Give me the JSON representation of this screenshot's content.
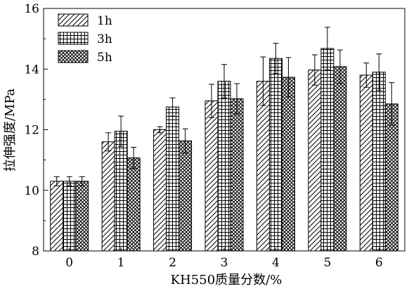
{
  "chart_data": {
    "type": "bar",
    "xlabel": "KH550质量分数/%",
    "ylabel": "拉伸强度/MPa",
    "categories": [
      "0",
      "1",
      "2",
      "3",
      "4",
      "5",
      "6"
    ],
    "ylim": [
      8,
      16
    ],
    "yticks": [
      8,
      10,
      12,
      14,
      16
    ],
    "legend_position": "top-left",
    "series": [
      {
        "name": "1h",
        "pattern": "diagonal-hatch",
        "values": [
          10.3,
          11.6,
          12.0,
          12.95,
          13.6,
          13.97,
          13.8
        ],
        "errors": [
          0.15,
          0.3,
          0.1,
          0.55,
          0.8,
          0.5,
          0.4
        ]
      },
      {
        "name": "3h",
        "pattern": "grid-hatch",
        "values": [
          10.3,
          11.95,
          12.75,
          13.6,
          14.35,
          14.68,
          13.9
        ],
        "errors": [
          0.15,
          0.5,
          0.3,
          0.55,
          0.5,
          0.7,
          0.6
        ]
      },
      {
        "name": "5h",
        "pattern": "crosshatch",
        "values": [
          10.3,
          11.07,
          11.63,
          13.02,
          13.73,
          14.08,
          12.85
        ],
        "errors": [
          0.15,
          0.35,
          0.4,
          0.5,
          0.65,
          0.55,
          0.7
        ]
      }
    ]
  }
}
